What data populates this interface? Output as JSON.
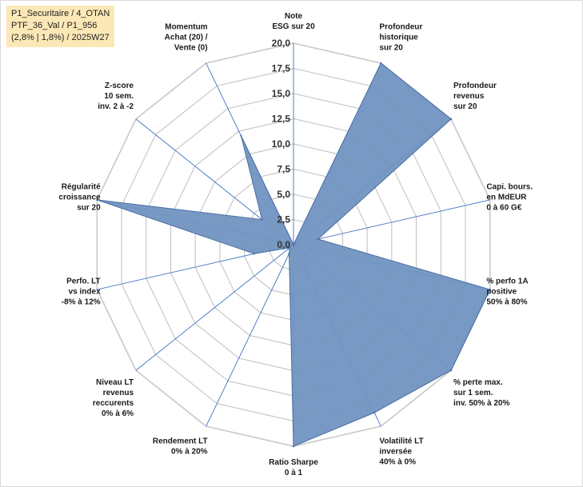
{
  "info": {
    "line1": "P1_Securitaire / 4_OTAN",
    "line2": "PTF_36_Val / P1_956",
    "line3": "(2,8% | 1,8%) / 2025W27"
  },
  "colors": {
    "fill": "#7193c0",
    "stroke": "#4a6fa5",
    "grid": "#c8c8c8",
    "axis": "#3f72c4"
  },
  "chart_data": {
    "type": "radar",
    "title": "",
    "rlim": [
      0,
      20
    ],
    "ticks": [
      "0,0",
      "2,5",
      "5,0",
      "7,5",
      "10,0",
      "12,5",
      "15,0",
      "17,5",
      "20,0"
    ],
    "grid": true,
    "categories": [
      [
        "Note",
        "ESG sur 20"
      ],
      [
        "Profondeur",
        "historique",
        "sur 20"
      ],
      [
        "Profondeur",
        "revenus",
        "sur 20"
      ],
      [
        "Capi. bours.",
        "en MdEUR",
        "0 à 60 G€"
      ],
      [
        "% perfo 1A",
        "positive",
        "50% à 80%"
      ],
      [
        "% perte max.",
        "sur 1 sem.",
        "inv. 50% à 20%"
      ],
      [
        "Volatilité LT",
        "inversée",
        "40% à 0%"
      ],
      [
        "Ratio Sharpe",
        "0 à 1"
      ],
      [
        "Rendement LT",
        "0% à 20%"
      ],
      [
        "Niveau LT",
        "revenus",
        "reccurents",
        "0% à 6%"
      ],
      [
        "Perfo. LT",
        "vs index",
        "-8% à 12%"
      ],
      [
        "Régularité",
        "croissance",
        "sur 20"
      ],
      [
        "Z-score",
        "10 sem.",
        "inv. 2 à -2"
      ],
      [
        "Momentum",
        "Achat (20) /",
        "Vente (0)"
      ]
    ],
    "series": [
      {
        "values": [
          0,
          20,
          20,
          2.5,
          20,
          20,
          18.5,
          20,
          1,
          0.5,
          4,
          20,
          4,
          12
        ]
      }
    ]
  }
}
